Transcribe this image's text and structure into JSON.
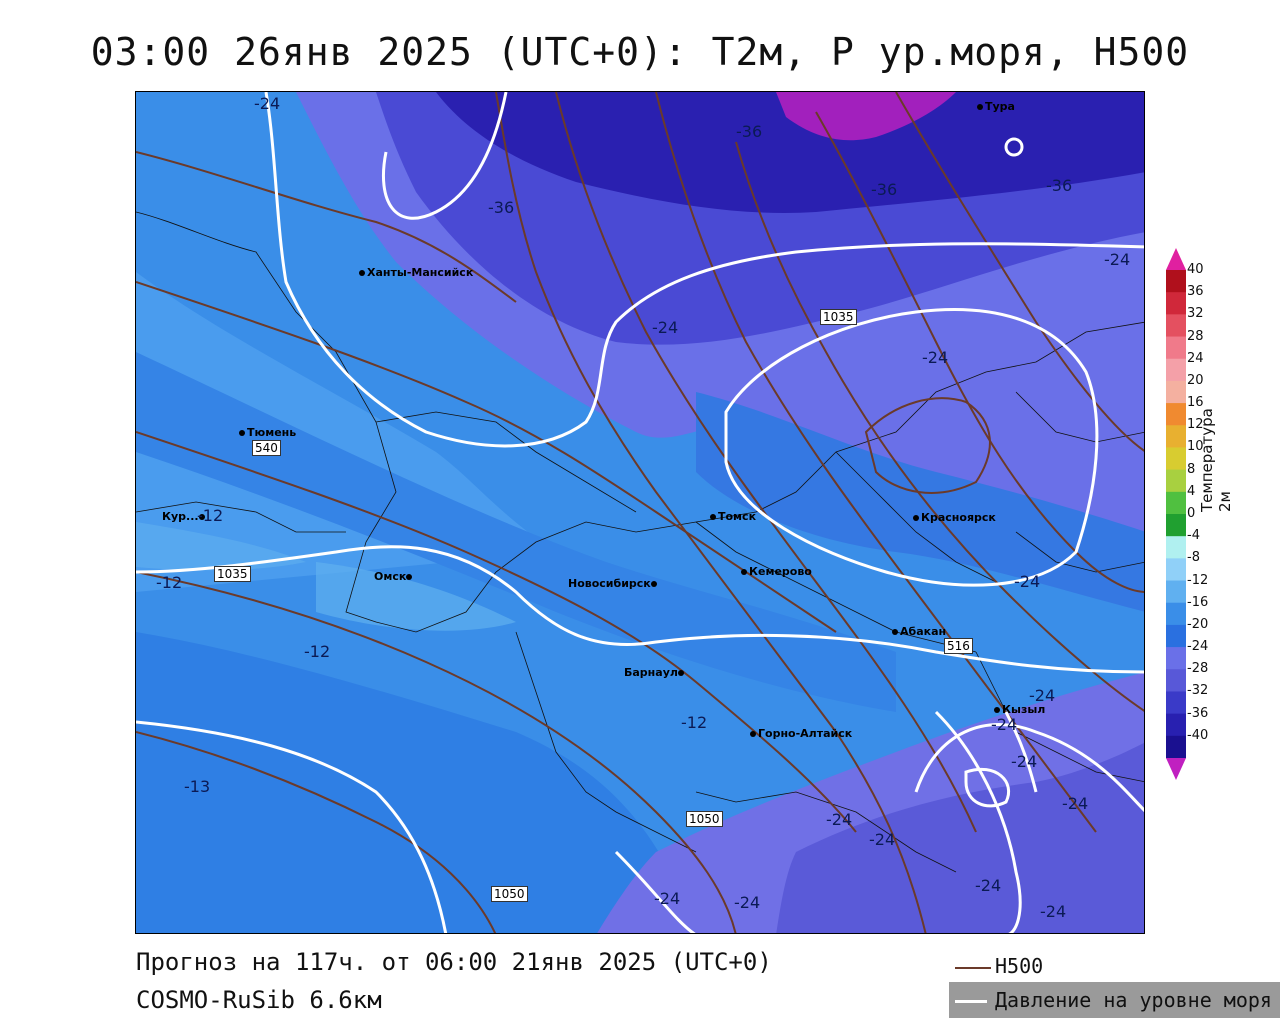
{
  "title": "03:00 26янв 2025 (UTC+0): T2м, P ур.моря, H500",
  "footer": {
    "forecast": "Прогноз на 117ч. от 06:00 21янв 2025 (UTC+0)",
    "model": "COSMO-RuSib 6.6км"
  },
  "legend": {
    "h500_label": "H500",
    "h500_color": "#6b3a2a",
    "pressure_label": "Давление на уровне моря",
    "pressure_color": "#ffffff"
  },
  "colorbar": {
    "title": "Температура 2м",
    "ticks": [
      "40",
      "36",
      "32",
      "28",
      "24",
      "20",
      "16",
      "12",
      "10",
      "8",
      "4",
      "0",
      "-4",
      "-8",
      "-12",
      "-16",
      "-20",
      "-24",
      "-28",
      "-32",
      "-36",
      "-40"
    ],
    "colors": [
      "#b0101c",
      "#d0283a",
      "#e45060",
      "#f07a8a",
      "#f4a0a8",
      "#f4b0a0",
      "#f08a30",
      "#e8b030",
      "#d8cc30",
      "#a8d040",
      "#50c040",
      "#20a030",
      "#b0f0f0",
      "#90d0f8",
      "#60b0f0",
      "#3a8ee8",
      "#2a70e0",
      "#6a70e8",
      "#5858d8",
      "#3a3ac8",
      "#2820b0",
      "#1a1090"
    ]
  },
  "cities": [
    {
      "name": "Ханты-Мансийск"
    },
    {
      "name": "Тюмень"
    },
    {
      "name": "Кур..."
    },
    {
      "name": "Омск"
    },
    {
      "name": "Новосибирск"
    },
    {
      "name": "Томск"
    },
    {
      "name": "Кемерово"
    },
    {
      "name": "Красноярск"
    },
    {
      "name": "Абакан"
    },
    {
      "name": "Барнаул"
    },
    {
      "name": "Горно-Алтайск"
    },
    {
      "name": "Кызыл"
    },
    {
      "name": "Тура"
    }
  ],
  "contour_labels": {
    "temp": [
      "-24",
      "-36",
      "-36",
      "-36",
      "-36",
      "-24",
      "-24",
      "-24",
      "-12",
      "-12",
      "-12",
      "-13",
      "-12",
      "-24",
      "-24",
      "-24",
      "-24",
      "-24",
      "-24",
      "-24",
      "-24",
      "-24",
      "-24",
      "-24"
    ],
    "pressure": [
      "1035",
      "1035",
      "1050",
      "1050"
    ],
    "h500": [
      "540",
      "516"
    ],
    "misc": "-12"
  }
}
